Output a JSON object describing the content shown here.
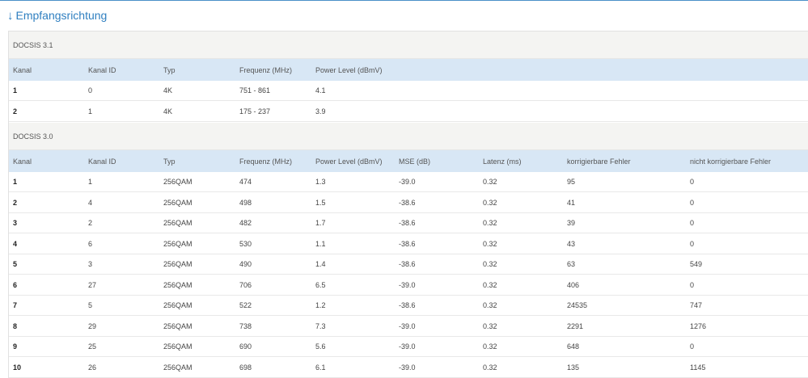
{
  "page": {
    "title": "Empfangsrichtung",
    "arrow": "↓"
  },
  "docsis31": {
    "section_label": "DOCSIS 3.1",
    "headers": [
      "Kanal",
      "Kanal ID",
      "Typ",
      "Frequenz (MHz)",
      "Power Level (dBmV)"
    ],
    "rows": [
      [
        "1",
        "0",
        "4K",
        "751 - 861",
        "4.1"
      ],
      [
        "2",
        "1",
        "4K",
        "175 - 237",
        "3.9"
      ]
    ]
  },
  "docsis30": {
    "section_label": "DOCSIS 3.0",
    "headers": [
      "Kanal",
      "Kanal ID",
      "Typ",
      "Frequenz (MHz)",
      "Power Level (dBmV)",
      "MSE (dB)",
      "Latenz (ms)",
      "korrigierbare Fehler",
      "nicht korrigierbare Fehler"
    ],
    "rows": [
      [
        "1",
        "1",
        "256QAM",
        "474",
        "1.3",
        "-39.0",
        "0.32",
        "95",
        "0"
      ],
      [
        "2",
        "4",
        "256QAM",
        "498",
        "1.5",
        "-38.6",
        "0.32",
        "41",
        "0"
      ],
      [
        "3",
        "2",
        "256QAM",
        "482",
        "1.7",
        "-38.6",
        "0.32",
        "39",
        "0"
      ],
      [
        "4",
        "6",
        "256QAM",
        "530",
        "1.1",
        "-38.6",
        "0.32",
        "43",
        "0"
      ],
      [
        "5",
        "3",
        "256QAM",
        "490",
        "1.4",
        "-38.6",
        "0.32",
        "63",
        "549"
      ],
      [
        "6",
        "27",
        "256QAM",
        "706",
        "6.5",
        "-39.0",
        "0.32",
        "406",
        "0"
      ],
      [
        "7",
        "5",
        "256QAM",
        "522",
        "1.2",
        "-38.6",
        "0.32",
        "24535",
        "747"
      ],
      [
        "8",
        "29",
        "256QAM",
        "738",
        "7.3",
        "-39.0",
        "0.32",
        "2291",
        "1276"
      ],
      [
        "9",
        "25",
        "256QAM",
        "690",
        "5.6",
        "-39.0",
        "0.32",
        "648",
        "0"
      ],
      [
        "10",
        "26",
        "256QAM",
        "698",
        "6.1",
        "-39.0",
        "0.32",
        "135",
        "1145"
      ]
    ]
  }
}
